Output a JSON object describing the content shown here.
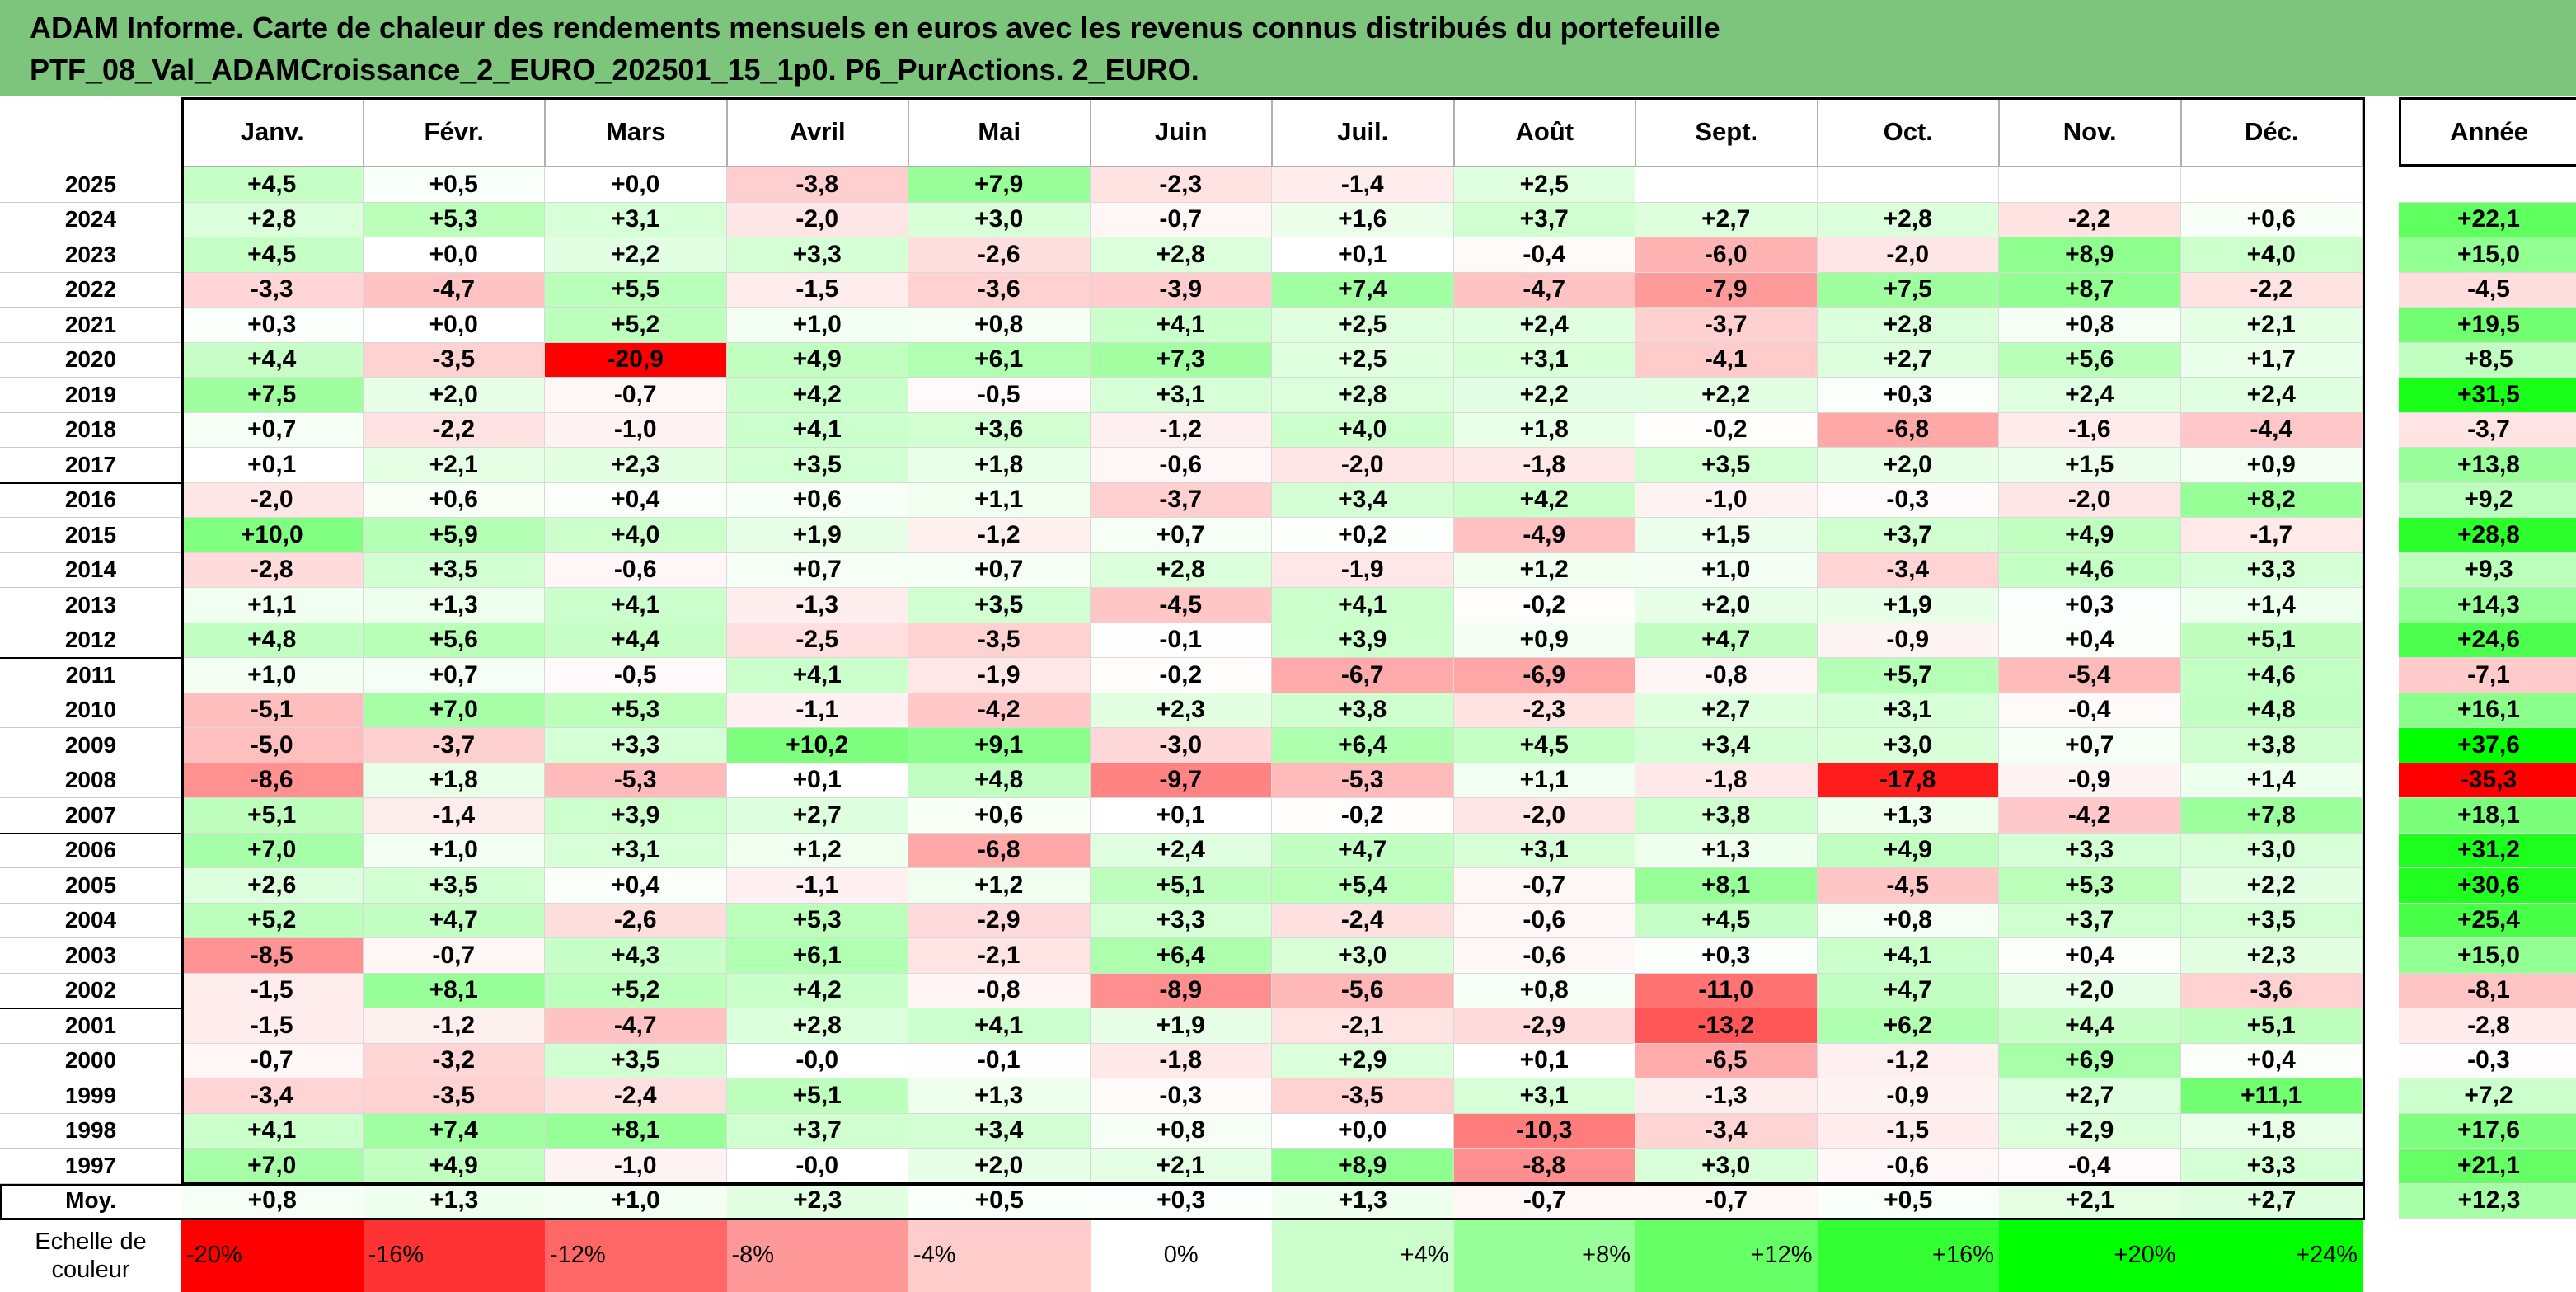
{
  "title": {
    "line1": "ADAM Informe. Carte de chaleur des rendements mensuels en euros avec les revenus connus distribués du portefeuille",
    "line2": "PTF_08_Val_ADAMCroissance_2_EURO_202501_15_1p0. P6_PurActions. 2_EURO."
  },
  "chart_data": {
    "type": "heatmap",
    "columns": [
      "Janv.",
      "Févr.",
      "Mars",
      "Avril",
      "Mai",
      "Juin",
      "Juil.",
      "Août",
      "Sept.",
      "Oct.",
      "Nov.",
      "Déc."
    ],
    "year_column": "Année",
    "rows": [
      {
        "year": "2025",
        "months": [
          "+4,5",
          "+0,5",
          "+0,0",
          "-3,8",
          "+7,9",
          "-2,3",
          "-1,4",
          "+2,5",
          "",
          "",
          "",
          ""
        ],
        "annual": ""
      },
      {
        "year": "2024",
        "months": [
          "+2,8",
          "+5,3",
          "+3,1",
          "-2,0",
          "+3,0",
          "-0,7",
          "+1,6",
          "+3,7",
          "+2,7",
          "+2,8",
          "-2,2",
          "+0,6"
        ],
        "annual": "+22,1"
      },
      {
        "year": "2023",
        "months": [
          "+4,5",
          "+0,0",
          "+2,2",
          "+3,3",
          "-2,6",
          "+2,8",
          "+0,1",
          "-0,4",
          "-6,0",
          "-2,0",
          "+8,9",
          "+4,0"
        ],
        "annual": "+15,0"
      },
      {
        "year": "2022",
        "months": [
          "-3,3",
          "-4,7",
          "+5,5",
          "-1,5",
          "-3,6",
          "-3,9",
          "+7,4",
          "-4,7",
          "-7,9",
          "+7,5",
          "+8,7",
          "-2,2"
        ],
        "annual": "-4,5"
      },
      {
        "year": "2021",
        "months": [
          "+0,3",
          "+0,0",
          "+5,2",
          "+1,0",
          "+0,8",
          "+4,1",
          "+2,5",
          "+2,4",
          "-3,7",
          "+2,8",
          "+0,8",
          "+2,1"
        ],
        "annual": "+19,5"
      },
      {
        "year": "2020",
        "months": [
          "+4,4",
          "-3,5",
          "-20,9",
          "+4,9",
          "+6,1",
          "+7,3",
          "+2,5",
          "+3,1",
          "-4,1",
          "+2,7",
          "+5,6",
          "+1,7"
        ],
        "annual": "+8,5"
      },
      {
        "year": "2019",
        "months": [
          "+7,5",
          "+2,0",
          "-0,7",
          "+4,2",
          "-0,5",
          "+3,1",
          "+2,8",
          "+2,2",
          "+2,2",
          "+0,3",
          "+2,4",
          "+2,4"
        ],
        "annual": "+31,5"
      },
      {
        "year": "2018",
        "months": [
          "+0,7",
          "-2,2",
          "-1,0",
          "+4,1",
          "+3,6",
          "-1,2",
          "+4,0",
          "+1,8",
          "-0,2",
          "-6,8",
          "-1,6",
          "-4,4"
        ],
        "annual": "-3,7"
      },
      {
        "year": "2017",
        "months": [
          "+0,1",
          "+2,1",
          "+2,3",
          "+3,5",
          "+1,8",
          "-0,6",
          "-2,0",
          "-1,8",
          "+3,5",
          "+2,0",
          "+1,5",
          "+0,9"
        ],
        "annual": "+13,8"
      },
      {
        "year": "2016",
        "months": [
          "-2,0",
          "+0,6",
          "+0,4",
          "+0,6",
          "+1,1",
          "-3,7",
          "+3,4",
          "+4,2",
          "-1,0",
          "-0,3",
          "-2,0",
          "+8,2"
        ],
        "annual": "+9,2"
      },
      {
        "year": "2015",
        "months": [
          "+10,0",
          "+5,9",
          "+4,0",
          "+1,9",
          "-1,2",
          "+0,7",
          "+0,2",
          "-4,9",
          "+1,5",
          "+3,7",
          "+4,9",
          "-1,7"
        ],
        "annual": "+28,8"
      },
      {
        "year": "2014",
        "months": [
          "-2,8",
          "+3,5",
          "-0,6",
          "+0,7",
          "+0,7",
          "+2,8",
          "-1,9",
          "+1,2",
          "+1,0",
          "-3,4",
          "+4,6",
          "+3,3"
        ],
        "annual": "+9,3"
      },
      {
        "year": "2013",
        "months": [
          "+1,1",
          "+1,3",
          "+4,1",
          "-1,3",
          "+3,5",
          "-4,5",
          "+4,1",
          "-0,2",
          "+2,0",
          "+1,9",
          "+0,3",
          "+1,4"
        ],
        "annual": "+14,3"
      },
      {
        "year": "2012",
        "months": [
          "+4,8",
          "+5,6",
          "+4,4",
          "-2,5",
          "-3,5",
          "-0,1",
          "+3,9",
          "+0,9",
          "+4,7",
          "-0,9",
          "+0,4",
          "+5,1"
        ],
        "annual": "+24,6"
      },
      {
        "year": "2011",
        "months": [
          "+1,0",
          "+0,7",
          "-0,5",
          "+4,1",
          "-1,9",
          "-0,2",
          "-6,7",
          "-6,9",
          "-0,8",
          "+5,7",
          "-5,4",
          "+4,6"
        ],
        "annual": "-7,1"
      },
      {
        "year": "2010",
        "months": [
          "-5,1",
          "+7,0",
          "+5,3",
          "-1,1",
          "-4,2",
          "+2,3",
          "+3,8",
          "-2,3",
          "+2,7",
          "+3,1",
          "-0,4",
          "+4,8"
        ],
        "annual": "+16,1"
      },
      {
        "year": "2009",
        "months": [
          "-5,0",
          "-3,7",
          "+3,3",
          "+10,2",
          "+9,1",
          "-3,0",
          "+6,4",
          "+4,5",
          "+3,4",
          "+3,0",
          "+0,7",
          "+3,8"
        ],
        "annual": "+37,6"
      },
      {
        "year": "2008",
        "months": [
          "-8,6",
          "+1,8",
          "-5,3",
          "+0,1",
          "+4,8",
          "-9,7",
          "-5,3",
          "+1,1",
          "-1,8",
          "-17,8",
          "-0,9",
          "+1,4"
        ],
        "annual": "-35,3"
      },
      {
        "year": "2007",
        "months": [
          "+5,1",
          "-1,4",
          "+3,9",
          "+2,7",
          "+0,6",
          "+0,1",
          "-0,2",
          "-2,0",
          "+3,8",
          "+1,3",
          "-4,2",
          "+7,8"
        ],
        "annual": "+18,1"
      },
      {
        "year": "2006",
        "months": [
          "+7,0",
          "+1,0",
          "+3,1",
          "+1,2",
          "-6,8",
          "+2,4",
          "+4,7",
          "+3,1",
          "+1,3",
          "+4,9",
          "+3,3",
          "+3,0"
        ],
        "annual": "+31,2"
      },
      {
        "year": "2005",
        "months": [
          "+2,6",
          "+3,5",
          "+0,4",
          "-1,1",
          "+1,2",
          "+5,1",
          "+5,4",
          "-0,7",
          "+8,1",
          "-4,5",
          "+5,3",
          "+2,2"
        ],
        "annual": "+30,6"
      },
      {
        "year": "2004",
        "months": [
          "+5,2",
          "+4,7",
          "-2,6",
          "+5,3",
          "-2,9",
          "+3,3",
          "-2,4",
          "-0,6",
          "+4,5",
          "+0,8",
          "+3,7",
          "+3,5"
        ],
        "annual": "+25,4"
      },
      {
        "year": "2003",
        "months": [
          "-8,5",
          "-0,7",
          "+4,3",
          "+6,1",
          "-2,1",
          "+6,4",
          "+3,0",
          "-0,6",
          "+0,3",
          "+4,1",
          "+0,4",
          "+2,3"
        ],
        "annual": "+15,0"
      },
      {
        "year": "2002",
        "months": [
          "-1,5",
          "+8,1",
          "+5,2",
          "+4,2",
          "-0,8",
          "-8,9",
          "-5,6",
          "+0,8",
          "-11,0",
          "+4,7",
          "+2,0",
          "-3,6"
        ],
        "annual": "-8,1"
      },
      {
        "year": "2001",
        "months": [
          "-1,5",
          "-1,2",
          "-4,7",
          "+2,8",
          "+4,1",
          "+1,9",
          "-2,1",
          "-2,9",
          "-13,2",
          "+6,2",
          "+4,4",
          "+5,1"
        ],
        "annual": "-2,8"
      },
      {
        "year": "2000",
        "months": [
          "-0,7",
          "-3,2",
          "+3,5",
          "-0,0",
          "-0,1",
          "-1,8",
          "+2,9",
          "+0,1",
          "-6,5",
          "-1,2",
          "+6,9",
          "+0,4"
        ],
        "annual": "-0,3"
      },
      {
        "year": "1999",
        "months": [
          "-3,4",
          "-3,5",
          "-2,4",
          "+5,1",
          "+1,3",
          "-0,3",
          "-3,5",
          "+3,1",
          "-1,3",
          "-0,9",
          "+2,7",
          "+11,1"
        ],
        "annual": "+7,2"
      },
      {
        "year": "1998",
        "months": [
          "+4,1",
          "+7,4",
          "+8,1",
          "+3,7",
          "+3,4",
          "+0,8",
          "+0,0",
          "-10,3",
          "-3,4",
          "-1,5",
          "+2,9",
          "+1,8"
        ],
        "annual": "+17,6"
      },
      {
        "year": "1997",
        "months": [
          "+7,0",
          "+4,9",
          "-1,0",
          "-0,0",
          "+2,0",
          "+2,1",
          "+8,9",
          "-8,8",
          "+3,0",
          "-0,6",
          "-0,4",
          "+3,3"
        ],
        "annual": "+21,1"
      }
    ],
    "average": {
      "label": "Moy.",
      "months": [
        "+0,8",
        "+1,3",
        "+1,0",
        "+2,3",
        "+0,5",
        "+0,3",
        "+1,3",
        "-0,7",
        "-0,7",
        "+0,5",
        "+2,1",
        "+2,7"
      ],
      "annual": "+12,3"
    },
    "legend": {
      "label": "Echelle de couleur",
      "steps": [
        "-20%",
        "-16%",
        "-12%",
        "-8%",
        "-4%",
        "0%",
        "+4%",
        "+8%",
        "+12%",
        "+16%",
        "+20%",
        "+24%"
      ],
      "step_values": [
        -20,
        -16,
        -12,
        -8,
        -4,
        0,
        4,
        8,
        12,
        16,
        20,
        24
      ]
    },
    "colors": {
      "negative": "#ff0000",
      "positive": "#00ff00",
      "neutral": "#ffffff"
    }
  }
}
